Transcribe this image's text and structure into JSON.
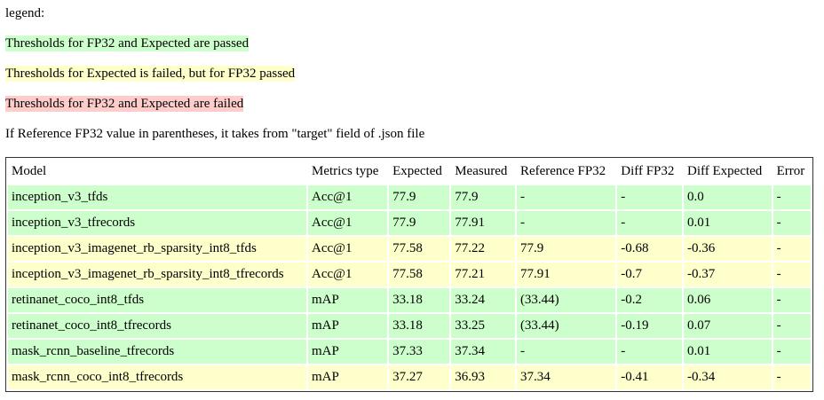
{
  "legend": {
    "title": "legend:",
    "items": [
      {
        "text": "Thresholds for FP32 and Expected are passed",
        "color": "#ccffcc"
      },
      {
        "text": "Thresholds for Expected is failed, but for FP32 passed",
        "color": "#ffffcc"
      },
      {
        "text": "Thresholds for FP32 and Expected are failed",
        "color": "#ffcccc"
      }
    ],
    "note": "If Reference FP32 value in parentheses, it takes from \"target\" field of .json file"
  },
  "table": {
    "header": [
      "Model",
      "Metrics type",
      "Expected",
      "Measured",
      "Reference FP32",
      "Diff FP32",
      "Diff Expected",
      "Error"
    ],
    "rows": [
      [
        "inception_v3_tfds",
        "Acc@1",
        "77.9",
        "77.9",
        "-",
        "-",
        "0.0",
        "-"
      ],
      [
        "inception_v3_tfrecords",
        "Acc@1",
        "77.9",
        "77.91",
        "-",
        "-",
        "0.01",
        "-"
      ],
      [
        "inception_v3_imagenet_rb_sparsity_int8_tfds",
        "Acc@1",
        "77.58",
        "77.22",
        "77.9",
        "-0.68",
        "-0.36",
        "-"
      ],
      [
        "inception_v3_imagenet_rb_sparsity_int8_tfrecords",
        "Acc@1",
        "77.58",
        "77.21",
        "77.91",
        "-0.7",
        "-0.37",
        "-"
      ],
      [
        "retinanet_coco_int8_tfds",
        "mAP",
        "33.18",
        "33.24",
        "(33.44)",
        "-0.2",
        "0.06",
        "-"
      ],
      [
        "retinanet_coco_int8_tfrecords",
        "mAP",
        "33.18",
        "33.25",
        "(33.44)",
        "-0.19",
        "0.07",
        "-"
      ],
      [
        "mask_rcnn_baseline_tfrecords",
        "mAP",
        "37.33",
        "37.34",
        "-",
        "-",
        "0.01",
        "-"
      ],
      [
        "mask_rcnn_coco_int8_tfrecords",
        "mAP",
        "37.27",
        "36.93",
        "37.34",
        "-0.41",
        "-0.34",
        "-"
      ]
    ],
    "row_colors": [
      "#ccffcc",
      "#ccffcc",
      "#ffffcc",
      "#ffffcc",
      "#ccffcc",
      "#ccffcc",
      "#ccffcc",
      "#ffffcc"
    ]
  }
}
